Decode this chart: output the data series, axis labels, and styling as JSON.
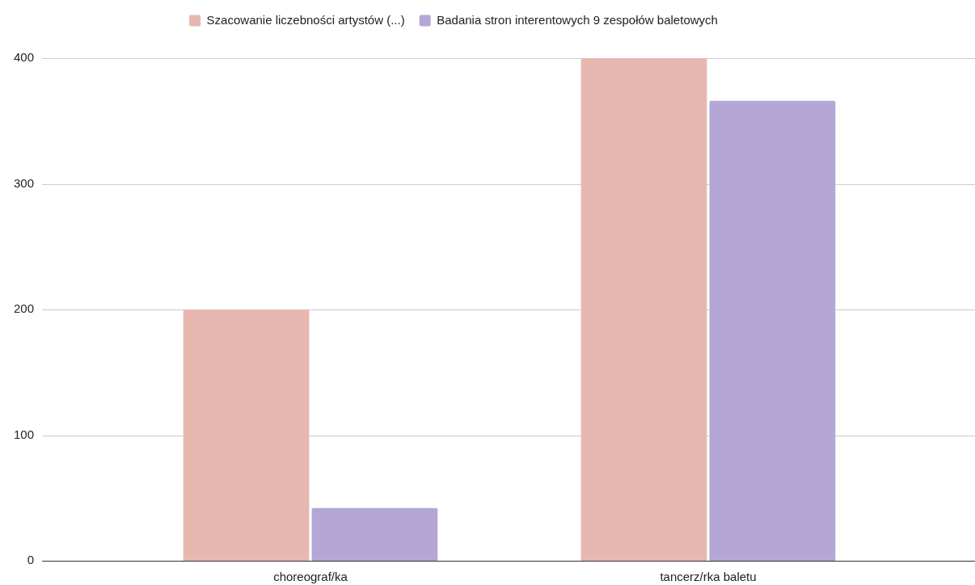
{
  "chart_data": {
    "type": "bar",
    "categories": [
      "choreograf/ka",
      "tancerz/rka baletu"
    ],
    "series": [
      {
        "name": "Szacowanie liczebności artystów (...)",
        "color": "#e6b8af",
        "values": [
          200,
          400
        ]
      },
      {
        "name": "Badania stron interentowych 9 zespołów baletowych",
        "color": "#b4a7d6",
        "values": [
          42,
          366
        ]
      }
    ],
    "ylim": [
      0,
      400
    ],
    "yticks": [
      0,
      100,
      200,
      300,
      400
    ],
    "grid": "y",
    "legend": "top"
  }
}
